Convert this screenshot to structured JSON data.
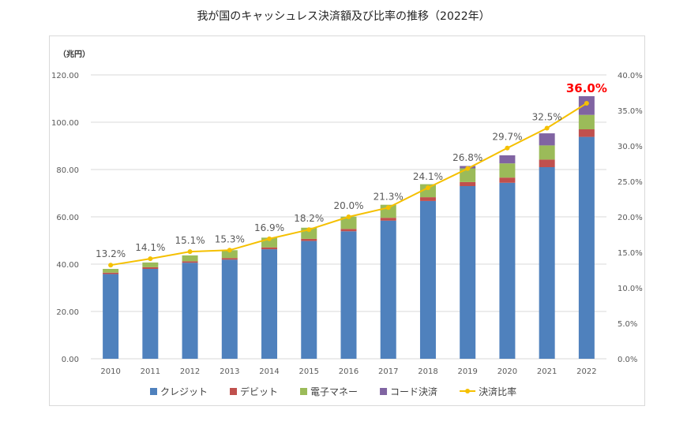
{
  "chart_data": {
    "type": "bar",
    "stacked": true,
    "title": "我が国のキャッシュレス決済額及び比率の推移（2022年）",
    "ylabel": "（兆円）",
    "ylim": [
      0,
      120
    ],
    "y2lim": [
      0,
      40
    ],
    "yticks": [
      "0.00",
      "20.00",
      "40.00",
      "60.00",
      "80.00",
      "100.00",
      "120.00"
    ],
    "y2ticks": [
      "0.0%",
      "5.0%",
      "10.0%",
      "15.0%",
      "20.0%",
      "25.0%",
      "30.0%",
      "35.0%",
      "40.0%"
    ],
    "grid": true,
    "legend": "bottom",
    "categories": [
      "2010",
      "2011",
      "2012",
      "2013",
      "2014",
      "2015",
      "2016",
      "2017",
      "2018",
      "2019",
      "2020",
      "2021",
      "2022"
    ],
    "series": [
      {
        "name": "クレジット",
        "color": "#4f81bd",
        "values": [
          35.8,
          38.0,
          40.6,
          41.9,
          46.3,
          49.8,
          53.9,
          58.4,
          66.7,
          73.0,
          74.4,
          81.0,
          93.8
        ]
      },
      {
        "name": "デビット",
        "color": "#c0504d",
        "values": [
          0.6,
          0.7,
          0.6,
          0.7,
          0.8,
          0.9,
          1.0,
          1.2,
          1.6,
          1.7,
          2.2,
          3.2,
          3.2
        ]
      },
      {
        "name": "電子マネー",
        "color": "#9bbb59",
        "values": [
          1.6,
          2.0,
          2.5,
          3.3,
          4.1,
          4.7,
          5.2,
          5.5,
          5.5,
          5.8,
          6.0,
          6.0,
          6.1
        ]
      },
      {
        "name": "コード決済",
        "color": "#8064a2",
        "values": [
          0,
          0,
          0,
          0,
          0,
          0,
          0,
          0,
          0,
          1.0,
          3.4,
          5.1,
          7.9
        ]
      }
    ],
    "line": {
      "name": "決済比率",
      "color": "#f5c000",
      "axis": "right",
      "values": [
        13.2,
        14.1,
        15.1,
        15.3,
        16.9,
        18.2,
        20.0,
        21.3,
        24.1,
        26.8,
        29.7,
        32.5,
        36.0
      ],
      "labels": [
        "13.2%",
        "14.1%",
        "15.1%",
        "15.3%",
        "16.9%",
        "18.2%",
        "20.0%",
        "21.3%",
        "24.1%",
        "26.8%",
        "29.7%",
        "32.5%",
        "36.0%"
      ],
      "highlight_color": "#ff0000"
    }
  }
}
